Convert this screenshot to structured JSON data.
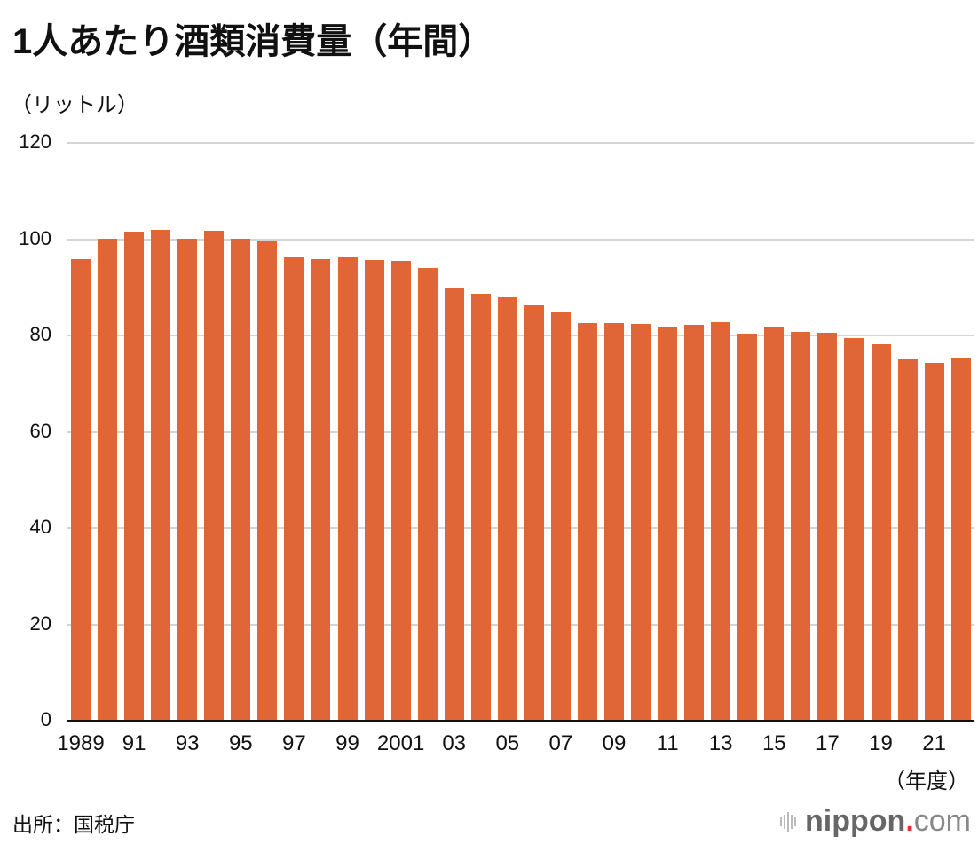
{
  "title": "1人あたり酒類消費量（年間）",
  "y_unit_label": "（リットル）",
  "x_unit_label": "（年度）",
  "source": "出所：国税庁",
  "logo": {
    "name": "nippon",
    "dot": ".",
    "suffix": "com"
  },
  "colors": {
    "bar": "#e06637",
    "grid": "#d4d4d4",
    "axis": "#111111",
    "logo_dot": "#e0302b"
  },
  "chart_data": {
    "type": "bar",
    "title": "1人あたり酒類消費量（年間）",
    "xlabel": "（年度）",
    "ylabel": "（リットル）",
    "ylim": [
      0,
      120
    ],
    "yticks": [
      0,
      20,
      40,
      60,
      80,
      100,
      120
    ],
    "grid": true,
    "legend": null,
    "categories": [
      "1989",
      "1990",
      "1991",
      "1992",
      "1993",
      "1994",
      "1995",
      "1996",
      "1997",
      "1998",
      "1999",
      "2000",
      "2001",
      "2002",
      "2003",
      "2004",
      "2005",
      "2006",
      "2007",
      "2008",
      "2009",
      "2010",
      "2011",
      "2012",
      "2013",
      "2014",
      "2015",
      "2016",
      "2017",
      "2018",
      "2019",
      "2020",
      "2021",
      "2022"
    ],
    "xtick_labels": [
      {
        "index": 0,
        "label": "1989"
      },
      {
        "index": 2,
        "label": "91"
      },
      {
        "index": 4,
        "label": "93"
      },
      {
        "index": 6,
        "label": "95"
      },
      {
        "index": 8,
        "label": "97"
      },
      {
        "index": 10,
        "label": "99"
      },
      {
        "index": 12,
        "label": "2001"
      },
      {
        "index": 14,
        "label": "03"
      },
      {
        "index": 16,
        "label": "05"
      },
      {
        "index": 18,
        "label": "07"
      },
      {
        "index": 20,
        "label": "09"
      },
      {
        "index": 22,
        "label": "11"
      },
      {
        "index": 24,
        "label": "13"
      },
      {
        "index": 26,
        "label": "15"
      },
      {
        "index": 28,
        "label": "17"
      },
      {
        "index": 30,
        "label": "19"
      },
      {
        "index": 32,
        "label": "21"
      }
    ],
    "values": [
      95.9,
      100.1,
      101.6,
      101.9,
      100.1,
      101.7,
      100.1,
      99.5,
      96.2,
      95.9,
      96.2,
      95.6,
      95.4,
      94.0,
      89.8,
      88.6,
      87.9,
      86.2,
      85.0,
      82.6,
      82.6,
      82.4,
      81.9,
      82.2,
      82.7,
      80.3,
      81.6,
      80.8,
      80.5,
      79.4,
      78.1,
      75.0,
      74.3,
      75.4
    ]
  }
}
